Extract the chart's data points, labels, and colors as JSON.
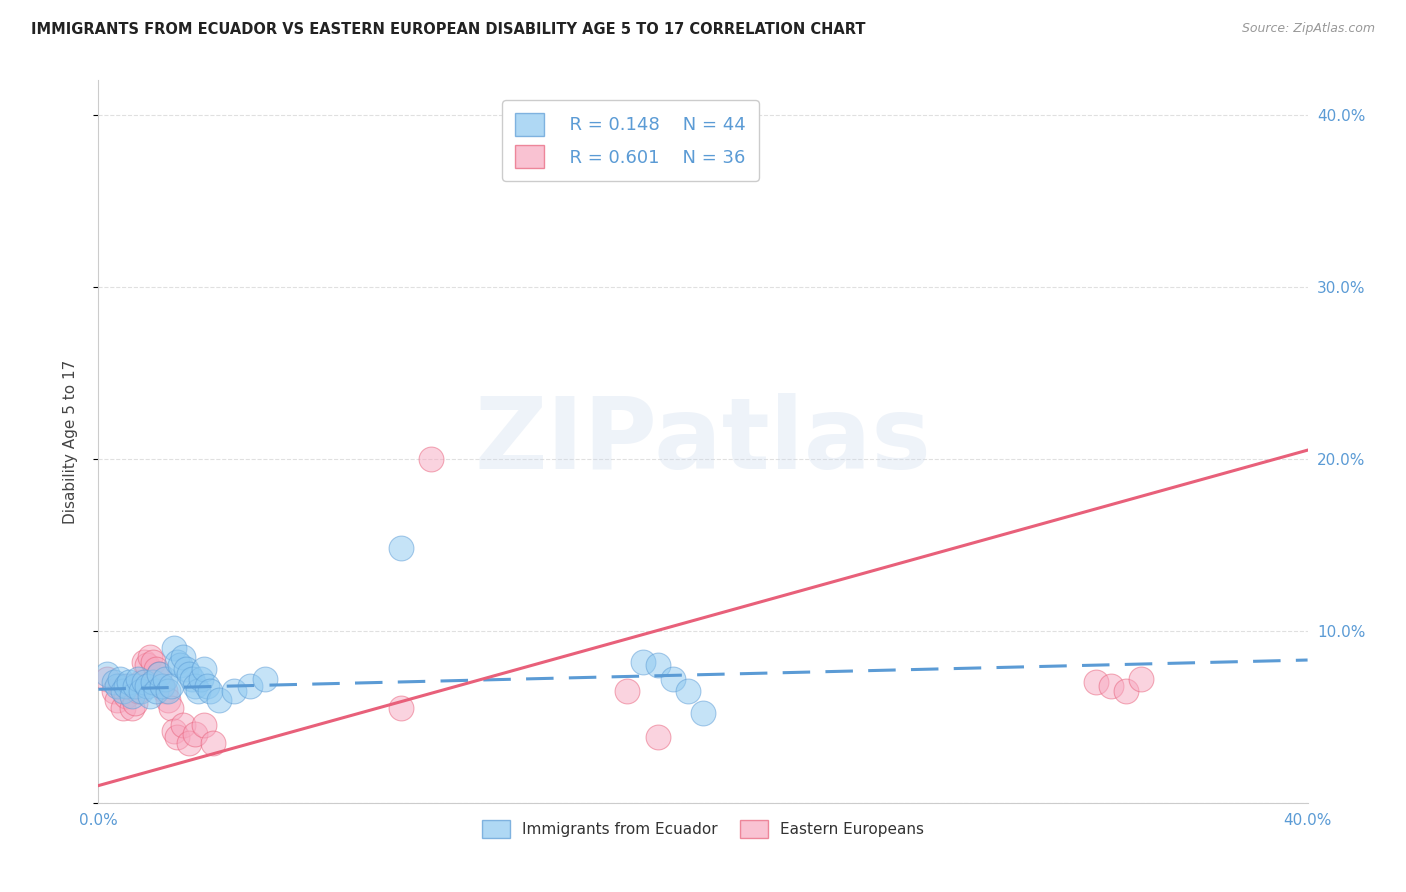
{
  "title": "IMMIGRANTS FROM ECUADOR VS EASTERN EUROPEAN DISABILITY AGE 5 TO 17 CORRELATION CHART",
  "source": "Source: ZipAtlas.com",
  "ylabel": "Disability Age 5 to 17",
  "xlim": [
    0.0,
    0.4
  ],
  "ylim": [
    0.0,
    0.42
  ],
  "ytick_positions": [
    0.0,
    0.1,
    0.2,
    0.3,
    0.4
  ],
  "ytick_labels": [
    "",
    "10.0%",
    "20.0%",
    "30.0%",
    "40.0%"
  ],
  "xtick_positions": [
    0.0,
    0.1,
    0.2,
    0.3,
    0.4
  ],
  "xtick_labels": [
    "0.0%",
    "",
    "",
    "",
    "40.0%"
  ],
  "legend_r1": "R = 0.148",
  "legend_n1": "N = 44",
  "legend_r2": "R = 0.601",
  "legend_n2": "N = 36",
  "color_blue": "#8DC8F0",
  "color_pink": "#F7A8C0",
  "color_line_blue": "#5B9BD5",
  "color_line_pink": "#E8607A",
  "color_axis_labels": "#5B9BD5",
  "watermark_text": "ZIPatlas",
  "ecuador_points": [
    [
      0.003,
      0.075
    ],
    [
      0.005,
      0.07
    ],
    [
      0.006,
      0.068
    ],
    [
      0.007,
      0.072
    ],
    [
      0.008,
      0.065
    ],
    [
      0.009,
      0.068
    ],
    [
      0.01,
      0.07
    ],
    [
      0.011,
      0.062
    ],
    [
      0.012,
      0.068
    ],
    [
      0.013,
      0.072
    ],
    [
      0.014,
      0.065
    ],
    [
      0.015,
      0.07
    ],
    [
      0.016,
      0.068
    ],
    [
      0.017,
      0.062
    ],
    [
      0.018,
      0.07
    ],
    [
      0.019,
      0.065
    ],
    [
      0.02,
      0.075
    ],
    [
      0.021,
      0.068
    ],
    [
      0.022,
      0.072
    ],
    [
      0.023,
      0.065
    ],
    [
      0.024,
      0.068
    ],
    [
      0.025,
      0.09
    ],
    [
      0.026,
      0.082
    ],
    [
      0.027,
      0.08
    ],
    [
      0.028,
      0.085
    ],
    [
      0.029,
      0.078
    ],
    [
      0.03,
      0.075
    ],
    [
      0.031,
      0.072
    ],
    [
      0.032,
      0.068
    ],
    [
      0.033,
      0.065
    ],
    [
      0.034,
      0.072
    ],
    [
      0.035,
      0.078
    ],
    [
      0.036,
      0.068
    ],
    [
      0.037,
      0.065
    ],
    [
      0.04,
      0.06
    ],
    [
      0.045,
      0.065
    ],
    [
      0.05,
      0.068
    ],
    [
      0.055,
      0.072
    ],
    [
      0.1,
      0.148
    ],
    [
      0.18,
      0.082
    ],
    [
      0.185,
      0.08
    ],
    [
      0.19,
      0.072
    ],
    [
      0.195,
      0.065
    ],
    [
      0.2,
      0.052
    ]
  ],
  "eastern_points": [
    [
      0.003,
      0.072
    ],
    [
      0.005,
      0.065
    ],
    [
      0.006,
      0.06
    ],
    [
      0.007,
      0.068
    ],
    [
      0.008,
      0.055
    ],
    [
      0.009,
      0.062
    ],
    [
      0.01,
      0.068
    ],
    [
      0.011,
      0.055
    ],
    [
      0.012,
      0.058
    ],
    [
      0.013,
      0.065
    ],
    [
      0.014,
      0.07
    ],
    [
      0.015,
      0.082
    ],
    [
      0.016,
      0.08
    ],
    [
      0.017,
      0.085
    ],
    [
      0.018,
      0.082
    ],
    [
      0.019,
      0.078
    ],
    [
      0.02,
      0.075
    ],
    [
      0.021,
      0.068
    ],
    [
      0.022,
      0.065
    ],
    [
      0.023,
      0.06
    ],
    [
      0.024,
      0.055
    ],
    [
      0.025,
      0.042
    ],
    [
      0.026,
      0.038
    ],
    [
      0.028,
      0.045
    ],
    [
      0.03,
      0.035
    ],
    [
      0.032,
      0.04
    ],
    [
      0.035,
      0.045
    ],
    [
      0.038,
      0.035
    ],
    [
      0.1,
      0.055
    ],
    [
      0.11,
      0.2
    ],
    [
      0.175,
      0.065
    ],
    [
      0.185,
      0.038
    ],
    [
      0.33,
      0.07
    ],
    [
      0.335,
      0.068
    ],
    [
      0.34,
      0.065
    ],
    [
      0.345,
      0.072
    ]
  ],
  "ecuador_trend": {
    "x_start": 0.0,
    "y_start": 0.066,
    "x_end": 0.4,
    "y_end": 0.083
  },
  "eastern_trend": {
    "x_start": 0.0,
    "y_start": 0.01,
    "x_end": 0.4,
    "y_end": 0.205
  },
  "grid_color": "#E0E0E0",
  "spine_color": "#CCCCCC"
}
